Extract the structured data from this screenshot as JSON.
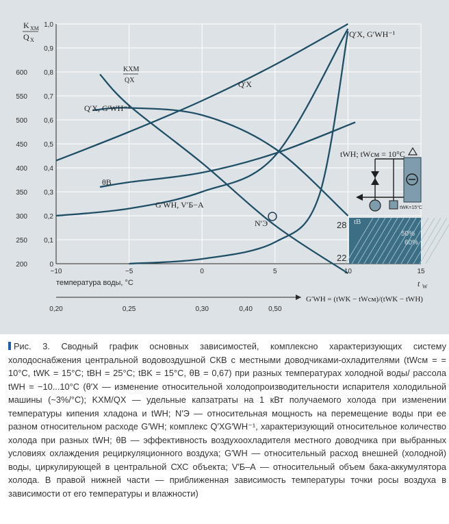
{
  "chart_data": {
    "type": "line",
    "xlabel": "температура воды, °C",
    "x_unit_symbol": "t",
    "x_unit_sub": "W",
    "x_ticks": [
      "−10",
      "−5",
      "0",
      "5",
      "10",
      "15"
    ],
    "xlim": [
      -10,
      15
    ],
    "y_left_outer_label_top": "K",
    "y_left_outer_label_top_sub": "ХМ",
    "y_left_outer_label_bottom": "Q",
    "y_left_outer_label_bottom_sub": "Х",
    "y_left_outer_ticks": [
      "200",
      "250",
      "300",
      "350",
      "400",
      "450",
      "500",
      "550",
      "600"
    ],
    "y_left_outer_range": [
      200,
      600
    ],
    "y_left_inner_ticks": [
      "0",
      "0,1",
      "0,2",
      "0,3",
      "0,4",
      "0,5",
      "0,6",
      "0,7",
      "0,8",
      "0,9",
      "1,0"
    ],
    "ylim": [
      0,
      1.0
    ],
    "secondary_axis_label": "G′WH = (tWK − tWсм)/(tWK − tWH)",
    "secondary_axis_ticks": [
      "0,20",
      "0,25",
      "0,30",
      "0,40",
      "0,50"
    ],
    "series": [
      {
        "name": "Q′Х",
        "x": [
          -10,
          -5,
          0,
          5,
          10
        ],
        "y": [
          0.43,
          0.55,
          0.68,
          0.83,
          1.0
        ]
      },
      {
        "name": "Q′Х, G′WH⁻¹",
        "x": [
          -7.5,
          -5,
          0,
          5,
          10
        ],
        "y": [
          0.64,
          0.65,
          0.62,
          0.48,
          0.2
        ]
      },
      {
        "name": "KХМ/QХ",
        "x": [
          -7,
          -5,
          0,
          5,
          10
        ],
        "y": [
          0.79,
          0.66,
          0.42,
          0.16,
          -0.04
        ]
      },
      {
        "name": "θВ",
        "x": [
          -7,
          -5,
          0,
          5,
          10.5
        ],
        "y": [
          0.32,
          0.34,
          0.38,
          0.46,
          0.59
        ]
      },
      {
        "name": "G′WH, V′Б−А",
        "x": [
          -10,
          -5,
          0,
          5,
          10
        ],
        "y": [
          0.2,
          0.23,
          0.3,
          0.45,
          0.98
        ]
      },
      {
        "name": "N′Э",
        "x": [
          -5,
          0,
          5,
          8,
          10
        ],
        "y": [
          0.0,
          0.02,
          0.09,
          0.28,
          0.97
        ]
      }
    ],
    "inset": {
      "label_t": "tWH; tWсм = 10°C",
      "label_twk": "tWK=15°C",
      "rh_50": "50%",
      "rh_60": "60%",
      "t_low": "22",
      "t_high": "28",
      "tB": "tВ"
    },
    "curve_labels": {
      "qx": "Q′Х",
      "qx_top_right": "Q′Х, G′WH⁻¹",
      "qx_g": "Q′Х, G′WH⁻¹",
      "k": "KХМ",
      "k_den": "QХ",
      "theta": "θВ",
      "gwh": "G′WH, V′Б−А",
      "ne": "N′Э"
    },
    "grid": true
  },
  "caption": "Рис. 3. Сводный график основных зависимостей, комплексно характеризующих систему холодоснабжения центральной водовоздушной СКВ с местными доводчиками-охладителями (tWсм = = 10°С, tWK = 15°С; tBH = 25°С; tBK = 15°С, θB = 0,67) при разных температурах холодной воды/ рассола tWH = −10...10°С (θ′X — изменение относительной холодопроизводительности испарителя холодильной машины (~3%/°С); KXM/QX — удельные капзатраты на 1 кВт получаемого холода при изменении температуры кипения хладона и tWH; N′Э — относительная мощность на перемещение воды при ее разном относительном расходе G′WH; комплекс Q′XG′WH⁻¹, характеризующий относительное количество холода при разных tWH; θB — эффективность воздухоохладителя местного доводчика при выбранных условиях охлаждения рециркуляционного воздуха; G′WH — относительный расход внешней (холодной) воды, циркулирующей в центральной СХС объекта; V′Б–А — относительный объем бака-аккумулятора холода. В правой нижней части — приближенная зависимость температуры точки росы воздуха в зависимости от его температуры и влажности)"
}
